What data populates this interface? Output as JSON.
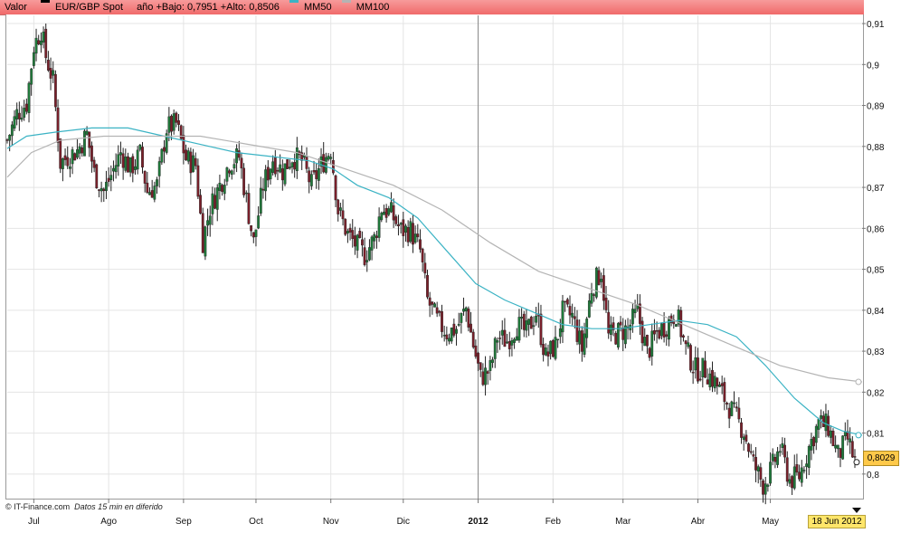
{
  "legend": {
    "valor": "Valor",
    "symbol": "EUR/GBP Spot",
    "range_text": "año +Bajo: 0,7951 +Alto: 0,8506",
    "ma50": "MM50",
    "ma100": "MM100"
  },
  "credit": {
    "source": "© IT-Finance.com",
    "note": "Datos 15 min en diferido"
  },
  "last_date": "18 Jun 2012",
  "last_price": "0,8029",
  "colors": {
    "legend_bg": "#f47c7c",
    "up": "#1f7a3a",
    "down": "#7a1f2a",
    "ma50": "#3bb3c4",
    "ma100": "#b4b4b4",
    "grid": "#e4e4e4"
  },
  "chart_data": {
    "type": "candlestick",
    "y_axis": {
      "min": 0.794,
      "max": 0.912,
      "ticks": [
        "0,8",
        "0,81",
        "0,82",
        "0,83",
        "0,84",
        "0,85",
        "0,86",
        "0,87",
        "0,88",
        "0,89",
        "0,9",
        "0,91"
      ],
      "tick_values": [
        0.8,
        0.81,
        0.82,
        0.83,
        0.84,
        0.85,
        0.86,
        0.87,
        0.88,
        0.89,
        0.9,
        0.91
      ]
    },
    "x_axis": {
      "labels": [
        "Jul",
        "Ago",
        "Sep",
        "Oct",
        "Nov",
        "Dic",
        "2012",
        "Feb",
        "Mar",
        "Abr",
        "May"
      ],
      "label_days": [
        11,
        42,
        73,
        103,
        134,
        164,
        195,
        226,
        255,
        286,
        316
      ],
      "range_days": [
        0,
        354
      ]
    },
    "close_points": [
      [
        0,
        0.8815
      ],
      [
        4,
        0.888
      ],
      [
        8,
        0.8905
      ],
      [
        11,
        0.9045
      ],
      [
        14,
        0.9085
      ],
      [
        16,
        0.902
      ],
      [
        19,
        0.896
      ],
      [
        22,
        0.876
      ],
      [
        25,
        0.8775
      ],
      [
        29,
        0.879
      ],
      [
        33,
        0.883
      ],
      [
        36,
        0.8735
      ],
      [
        40,
        0.869
      ],
      [
        43,
        0.873
      ],
      [
        47,
        0.8785
      ],
      [
        51,
        0.8745
      ],
      [
        55,
        0.878
      ],
      [
        58,
        0.869
      ],
      [
        62,
        0.8705
      ],
      [
        66,
        0.8845
      ],
      [
        70,
        0.8855
      ],
      [
        74,
        0.877
      ],
      [
        78,
        0.8755
      ],
      [
        81,
        0.857
      ],
      [
        84,
        0.865
      ],
      [
        88,
        0.8705
      ],
      [
        92,
        0.876
      ],
      [
        96,
        0.8775
      ],
      [
        99,
        0.867
      ],
      [
        102,
        0.8565
      ],
      [
        106,
        0.8705
      ],
      [
        110,
        0.877
      ],
      [
        114,
        0.874
      ],
      [
        118,
        0.8775
      ],
      [
        122,
        0.8765
      ],
      [
        126,
        0.8705
      ],
      [
        130,
        0.8755
      ],
      [
        134,
        0.8795
      ],
      [
        137,
        0.8645
      ],
      [
        141,
        0.8585
      ],
      [
        145,
        0.8555
      ],
      [
        148,
        0.8535
      ],
      [
        152,
        0.8575
      ],
      [
        155,
        0.865
      ],
      [
        159,
        0.8635
      ],
      [
        163,
        0.8595
      ],
      [
        167,
        0.8595
      ],
      [
        171,
        0.8545
      ],
      [
        174,
        0.8425
      ],
      [
        178,
        0.8375
      ],
      [
        182,
        0.8345
      ],
      [
        186,
        0.8355
      ],
      [
        190,
        0.8405
      ],
      [
        193,
        0.8315
      ],
      [
        196,
        0.8235
      ],
      [
        200,
        0.8255
      ],
      [
        203,
        0.8335
      ],
      [
        207,
        0.8325
      ],
      [
        211,
        0.8365
      ],
      [
        215,
        0.8345
      ],
      [
        219,
        0.8395
      ],
      [
        223,
        0.8285
      ],
      [
        227,
        0.8315
      ],
      [
        230,
        0.8395
      ],
      [
        234,
        0.8385
      ],
      [
        238,
        0.8305
      ],
      [
        242,
        0.8455
      ],
      [
        246,
        0.8495
      ],
      [
        249,
        0.8335
      ],
      [
        253,
        0.8345
      ],
      [
        257,
        0.8355
      ],
      [
        261,
        0.8395
      ],
      [
        265,
        0.8295
      ],
      [
        269,
        0.8345
      ],
      [
        273,
        0.8365
      ],
      [
        277,
        0.8395
      ],
      [
        281,
        0.8305
      ],
      [
        285,
        0.8255
      ],
      [
        289,
        0.8255
      ],
      [
        293,
        0.8225
      ],
      [
        297,
        0.8185
      ],
      [
        301,
        0.8145
      ],
      [
        305,
        0.8105
      ],
      [
        309,
        0.8025
      ],
      [
        313,
        0.7975
      ],
      [
        316,
        0.8005
      ],
      [
        320,
        0.8065
      ],
      [
        324,
        0.7985
      ],
      [
        328,
        0.7995
      ],
      [
        332,
        0.8065
      ],
      [
        336,
        0.8125
      ],
      [
        340,
        0.8115
      ],
      [
        344,
        0.8045
      ],
      [
        348,
        0.8085
      ],
      [
        351,
        0.8029
      ]
    ],
    "series": [
      {
        "name": "MM50",
        "points": [
          [
            0,
            0.8795
          ],
          [
            8,
            0.8825
          ],
          [
            20,
            0.8835
          ],
          [
            35,
            0.8845
          ],
          [
            50,
            0.8845
          ],
          [
            65,
            0.8825
          ],
          [
            80,
            0.8805
          ],
          [
            95,
            0.8785
          ],
          [
            110,
            0.8775
          ],
          [
            125,
            0.8765
          ],
          [
            135,
            0.8745
          ],
          [
            145,
            0.8705
          ],
          [
            158,
            0.8675
          ],
          [
            170,
            0.8625
          ],
          [
            182,
            0.8545
          ],
          [
            194,
            0.8465
          ],
          [
            206,
            0.8425
          ],
          [
            218,
            0.8395
          ],
          [
            230,
            0.8365
          ],
          [
            242,
            0.8355
          ],
          [
            254,
            0.8355
          ],
          [
            266,
            0.8365
          ],
          [
            278,
            0.8375
          ],
          [
            290,
            0.8365
          ],
          [
            302,
            0.8335
          ],
          [
            314,
            0.8265
          ],
          [
            326,
            0.8185
          ],
          [
            338,
            0.8125
          ],
          [
            346,
            0.8105
          ],
          [
            354,
            0.8095
          ]
        ]
      },
      {
        "name": "MM100",
        "points": [
          [
            0,
            0.8725
          ],
          [
            10,
            0.8785
          ],
          [
            22,
            0.8815
          ],
          [
            40,
            0.8825
          ],
          [
            60,
            0.8825
          ],
          [
            80,
            0.8825
          ],
          [
            100,
            0.8805
          ],
          [
            120,
            0.8785
          ],
          [
            140,
            0.8745
          ],
          [
            160,
            0.8705
          ],
          [
            180,
            0.8645
          ],
          [
            200,
            0.8565
          ],
          [
            220,
            0.8495
          ],
          [
            240,
            0.8455
          ],
          [
            260,
            0.8415
          ],
          [
            280,
            0.8365
          ],
          [
            300,
            0.8315
          ],
          [
            320,
            0.8265
          ],
          [
            340,
            0.8235
          ],
          [
            354,
            0.8225
          ]
        ]
      }
    ],
    "last_value": 0.8029,
    "vertical_marker_day": 195
  }
}
